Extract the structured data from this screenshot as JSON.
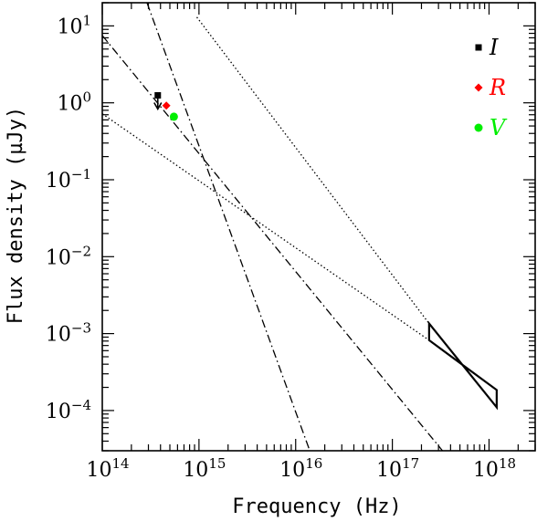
{
  "chart_data": {
    "type": "scatter",
    "xlabel": "Frequency (Hz)",
    "ylabel": "Flux density (µJy)",
    "x_scale": "log",
    "y_scale": "log",
    "xlim": [
      100000000000000.0,
      3e+18
    ],
    "ylim": [
      3e-05,
      20
    ],
    "x_ticks": [
      {
        "value": 100000000000000.0,
        "base": "10",
        "exp": "14"
      },
      {
        "value": 1000000000000000.0,
        "base": "10",
        "exp": "15"
      },
      {
        "value": 1e+16,
        "base": "10",
        "exp": "16"
      },
      {
        "value": 1e+17,
        "base": "10",
        "exp": "17"
      },
      {
        "value": 1e+18,
        "base": "10",
        "exp": "18"
      }
    ],
    "y_ticks": [
      {
        "value": 0.0001,
        "base": "10",
        "exp": "−4"
      },
      {
        "value": 0.001,
        "base": "10",
        "exp": "−3"
      },
      {
        "value": 0.01,
        "base": "10",
        "exp": "−2"
      },
      {
        "value": 0.1,
        "base": "10",
        "exp": "−1"
      },
      {
        "value": 1,
        "base": "10",
        "exp": "0"
      },
      {
        "value": 10,
        "base": "10",
        "exp": "1"
      }
    ],
    "legend_position": "top-right",
    "series": [
      {
        "name": "I",
        "marker": "square",
        "color": "#000000",
        "points": [
          {
            "x": 375000000000000.0,
            "y": 1.25,
            "upper_limit": true
          }
        ]
      },
      {
        "name": "R",
        "marker": "diamond",
        "color": "#ff0000",
        "points": [
          {
            "x": 460000000000000.0,
            "y": 0.92
          }
        ]
      },
      {
        "name": "V",
        "marker": "circle",
        "color": "#00ee00",
        "points": [
          {
            "x": 550000000000000.0,
            "y": 0.66
          }
        ]
      }
    ],
    "model_lines": [
      {
        "style": "dotted",
        "points": [
          {
            "x": 100000000000000.0,
            "y": 0.72
          },
          {
            "x": 2.4e+17,
            "y": 0.00082
          }
        ]
      },
      {
        "style": "dotted",
        "points": [
          {
            "x": 950000000000000.0,
            "y": 13
          },
          {
            "x": 2.4e+17,
            "y": 0.00135
          }
        ]
      },
      {
        "style": "dashdot",
        "points": [
          {
            "x": 100000000000000.0,
            "y": 7.5
          },
          {
            "x": 3.3e+17,
            "y": 3e-05
          }
        ]
      },
      {
        "style": "dashdot",
        "points": [
          {
            "x": 290000000000000.0,
            "y": 20
          },
          {
            "x": 1.4e+16,
            "y": 3e-05
          }
        ]
      }
    ],
    "xray_bowtie": [
      {
        "x": 2.4e+17,
        "y": 0.00135
      },
      {
        "x": 1.2e+18,
        "y": 0.00011
      },
      {
        "x": 1.2e+18,
        "y": 0.000185
      },
      {
        "x": 2.4e+17,
        "y": 0.00082
      }
    ]
  }
}
